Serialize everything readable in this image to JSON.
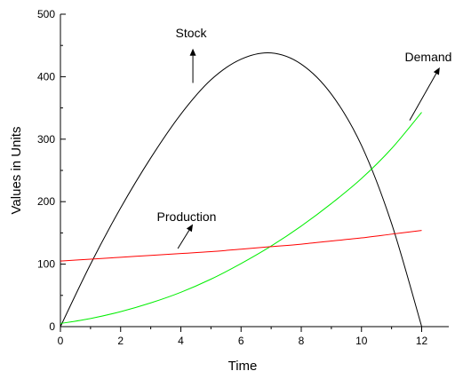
{
  "chart_data": {
    "type": "line",
    "title": "",
    "xlabel": "Time",
    "ylabel": "Values in Units",
    "xlim": [
      0,
      12.9
    ],
    "ylim": [
      0,
      500
    ],
    "xticks": [
      0,
      2,
      4,
      6,
      8,
      10,
      12
    ],
    "yticks": [
      0,
      100,
      200,
      300,
      400,
      500
    ],
    "grid": false,
    "legend": "none",
    "series": [
      {
        "name": "Stock",
        "color": "#000000",
        "x": [
          0,
          1,
          2,
          3,
          4,
          5,
          6,
          7,
          8,
          9,
          10,
          11,
          12
        ],
        "y": [
          0,
          100,
          190,
          270,
          340,
          395,
          428,
          438,
          420,
          372,
          290,
          165,
          0
        ]
      },
      {
        "name": "Demand",
        "color": "#00ee00",
        "x": [
          0,
          1,
          2,
          3,
          4,
          5,
          6,
          7,
          8,
          9,
          10,
          11,
          12
        ],
        "y": [
          5,
          13,
          24,
          38,
          55,
          76,
          101,
          129,
          161,
          197,
          237,
          285,
          343
        ]
      },
      {
        "name": "Production",
        "color": "#ff0000",
        "x": [
          0,
          1,
          2,
          3,
          4,
          5,
          6,
          7,
          8,
          9,
          10,
          11,
          12
        ],
        "y": [
          105,
          108,
          111,
          114,
          117,
          120,
          124,
          128,
          132,
          137,
          142,
          148,
          154
        ]
      }
    ],
    "annotations": [
      {
        "name": "stock",
        "text": "Stock",
        "arrow_from": [
          4.4,
          390
        ],
        "arrow_to": [
          4.4,
          445
        ]
      },
      {
        "name": "demand",
        "text": "Demand",
        "arrow_from": [
          11.6,
          330
        ],
        "arrow_to": [
          12.6,
          415
        ]
      },
      {
        "name": "production",
        "text": "Production",
        "arrow_from": [
          3.9,
          125
        ],
        "arrow_to": [
          4.4,
          164
        ]
      }
    ]
  }
}
